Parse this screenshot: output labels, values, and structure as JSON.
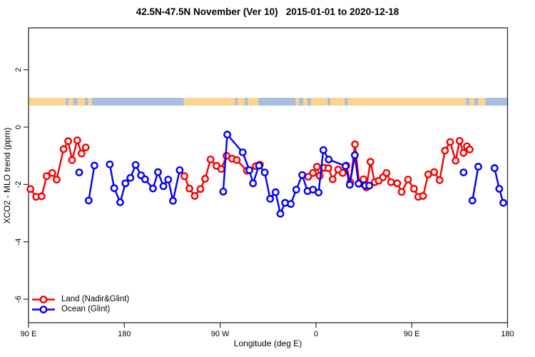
{
  "title": "42.5N-47.5N November (Ver 10)   2015-01-01 to 2020-12-18",
  "axes": {
    "x": {
      "label": "Longitude (deg E)",
      "range": [
        90,
        540
      ],
      "ticks": [
        {
          "value": 90,
          "label": "90 E"
        },
        {
          "value": 180,
          "label": "180"
        },
        {
          "value": 270,
          "label": "90 W"
        },
        {
          "value": 360,
          "label": "0"
        },
        {
          "value": 450,
          "label": "90 E"
        },
        {
          "value": 540,
          "label": "180"
        }
      ]
    },
    "y": {
      "label": "XCO2 - MLO trend (ppm)",
      "range": [
        -6.82,
        3.46
      ],
      "ticks": [
        {
          "value": 2,
          "label": "2"
        },
        {
          "value": 0,
          "label": "0"
        },
        {
          "value": -2,
          "label": "-2"
        },
        {
          "value": -4,
          "label": "-4"
        },
        {
          "value": -6,
          "label": "-6"
        }
      ]
    }
  },
  "legend": [
    {
      "label": "Land (Nadir&Glint)",
      "color": "#f60000"
    },
    {
      "label": "Ocean (Glint)",
      "color": "#0000f6"
    }
  ],
  "colors": {
    "land_series": "#f60000",
    "ocean_series": "#0000f6",
    "map_land": "#FAD58B",
    "map_ocean": "#A7BEDC",
    "axis": "#2a2a2a"
  },
  "map_strip": {
    "y_from": 0.75,
    "y_to": 1.02,
    "segments": [
      {
        "from": 90,
        "to": 125,
        "type": "land"
      },
      {
        "from": 125,
        "to": 127.5,
        "type": "ocean"
      },
      {
        "from": 127.5,
        "to": 132,
        "type": "land"
      },
      {
        "from": 132,
        "to": 136,
        "type": "ocean"
      },
      {
        "from": 136,
        "to": 143,
        "type": "land"
      },
      {
        "from": 143,
        "to": 146,
        "type": "ocean"
      },
      {
        "from": 146,
        "to": 149.5,
        "type": "land"
      },
      {
        "from": 149.5,
        "to": 236,
        "type": "ocean"
      },
      {
        "from": 236,
        "to": 284,
        "type": "land"
      },
      {
        "from": 284,
        "to": 286.5,
        "type": "ocean"
      },
      {
        "from": 286.5,
        "to": 293,
        "type": "land"
      },
      {
        "from": 293,
        "to": 296,
        "type": "ocean"
      },
      {
        "from": 296,
        "to": 306,
        "type": "land"
      },
      {
        "from": 306,
        "to": 341,
        "type": "ocean"
      },
      {
        "from": 341,
        "to": 344,
        "type": "land"
      },
      {
        "from": 344,
        "to": 348,
        "type": "ocean"
      },
      {
        "from": 348,
        "to": 352,
        "type": "land"
      },
      {
        "from": 352,
        "to": 355.5,
        "type": "ocean"
      },
      {
        "from": 355.5,
        "to": 371,
        "type": "land"
      },
      {
        "from": 371,
        "to": 373.5,
        "type": "ocean"
      },
      {
        "from": 373.5,
        "to": 387,
        "type": "land"
      },
      {
        "from": 387,
        "to": 390,
        "type": "ocean"
      },
      {
        "from": 390,
        "to": 501,
        "type": "land"
      },
      {
        "from": 501,
        "to": 504,
        "type": "ocean"
      },
      {
        "from": 504,
        "to": 509,
        "type": "land"
      },
      {
        "from": 509,
        "to": 512.5,
        "type": "ocean"
      },
      {
        "from": 512.5,
        "to": 519,
        "type": "land"
      },
      {
        "from": 519,
        "to": 540,
        "type": "ocean"
      }
    ]
  },
  "chart_data": {
    "type": "line",
    "title": "42.5N-47.5N November (Ver 10)   2015-01-01 to 2020-12-18",
    "xlabel": "Longitude (deg E)",
    "ylabel": "XCO2 - MLO trend (ppm)",
    "x_note": "longitude in deg E, continuous from 90E eastward through 180, 90W, 0, 90E to 180 (90..540)",
    "xlim": [
      90,
      540
    ],
    "ylim": [
      -6.82,
      3.46
    ],
    "grid": false,
    "legend_position": "bottom-left",
    "marker": "open-circle",
    "series": [
      {
        "name": "Land (Nadir&Glint)",
        "color": "#f60000",
        "segments": [
          [
            [
              91.8,
              -2.16
            ],
            [
              97.2,
              -2.43
            ],
            [
              102.3,
              -2.41
            ],
            [
              107.0,
              -1.71
            ],
            [
              112.3,
              -1.6
            ],
            [
              116.4,
              -1.83
            ],
            [
              122.9,
              -0.77
            ],
            [
              127.3,
              -0.49
            ],
            [
              130.9,
              -1.15
            ],
            [
              135.8,
              -0.46
            ],
            [
              139.8,
              -0.92
            ],
            [
              143.7,
              -0.71
            ]
          ],
          [
            [
              236.4,
              -1.71
            ],
            [
              241.1,
              -2.14
            ],
            [
              246.1,
              -2.4
            ],
            [
              251.5,
              -2.16
            ],
            [
              255.9,
              -1.8
            ],
            [
              261.0,
              -1.13
            ],
            [
              266.6,
              -1.35
            ],
            [
              271.1,
              -1.46
            ],
            [
              276.0,
              -1.0
            ],
            [
              281.2,
              -1.1
            ],
            [
              285.6,
              -1.15
            ],
            [
              295.2,
              -1.52
            ],
            [
              303.6,
              -1.36
            ],
            [
              307.4,
              -1.31
            ]
          ],
          [
            [
              352.8,
              -1.73
            ],
            [
              357.2,
              -1.6
            ],
            [
              361.0,
              -1.38
            ],
            [
              363.5,
              -1.7
            ],
            [
              367.7,
              -1.42
            ],
            [
              371.7,
              -1.43
            ],
            [
              375.7,
              -1.82
            ],
            [
              380.9,
              -1.48
            ],
            [
              385.1,
              -1.6
            ],
            [
              388.5,
              -1.34
            ],
            [
              392.3,
              -1.92
            ],
            [
              396.7,
              -0.6
            ],
            [
              400.7,
              -1.97
            ],
            [
              404.7,
              -1.82
            ],
            [
              407.4,
              -2.1
            ],
            [
              411.2,
              -1.21
            ],
            [
              415.2,
              -1.92
            ],
            [
              419.0,
              -1.87
            ],
            [
              423.0,
              -1.75
            ],
            [
              426.3,
              -1.6
            ],
            [
              430.5,
              -1.92
            ],
            [
              436.4,
              -1.96
            ],
            [
              440.5,
              -2.26
            ],
            [
              446.5,
              -1.83
            ],
            [
              452.1,
              -2.15
            ],
            [
              456.1,
              -2.43
            ],
            [
              460.6,
              -2.4
            ],
            [
              465.5,
              -1.65
            ],
            [
              471.1,
              -1.57
            ],
            [
              476.2,
              -1.85
            ],
            [
              481.2,
              -0.82
            ],
            [
              486.1,
              -0.52
            ],
            [
              491.2,
              -1.17
            ],
            [
              495.0,
              -0.48
            ],
            [
              498.6,
              -0.9
            ],
            [
              501.8,
              -0.67
            ],
            [
              504.5,
              -0.78
            ]
          ]
        ]
      },
      {
        "name": "Ocean (Glint)",
        "color": "#0000f6",
        "segments": [
          [
            [
              137.6,
              -1.58
            ]
          ],
          [
            [
              146.5,
              -2.56
            ],
            [
              151.9,
              -1.34
            ]
          ],
          [
            [
              166.3,
              -1.3
            ],
            [
              170.5,
              -2.13
            ],
            [
              176.1,
              -2.62
            ],
            [
              181.0,
              -1.96
            ],
            [
              185.7,
              -1.77
            ],
            [
              190.6,
              -1.32
            ],
            [
              195.7,
              -1.68
            ],
            [
              199.5,
              -1.82
            ],
            [
              206.9,
              -2.14
            ],
            [
              211.6,
              -1.57
            ],
            [
              216.7,
              -2.06
            ],
            [
              221.2,
              -1.83
            ],
            [
              225.7,
              -2.57
            ],
            [
              232.0,
              -1.5
            ]
          ],
          [
            [
              272.9,
              -2.25
            ],
            [
              276.7,
              -0.26
            ],
            [
              291.2,
              -0.88
            ],
            [
              297.5,
              -1.5
            ],
            [
              300.9,
              -1.96
            ],
            [
              306.5,
              -1.34
            ],
            [
              311.9,
              -1.58
            ],
            [
              317.0,
              -2.5
            ],
            [
              322.1,
              -2.27
            ],
            [
              326.6,
              -3.02
            ],
            [
              331.0,
              -2.64
            ],
            [
              336.4,
              -2.68
            ],
            [
              341.5,
              -2.18
            ],
            [
              347.1,
              -1.67
            ],
            [
              352.1,
              -2.23
            ],
            [
              357.2,
              -2.18
            ],
            [
              362.5,
              -2.28
            ],
            [
              367.0,
              -0.8
            ],
            [
              372.0,
              -1.13
            ],
            [
              387.8,
              -1.36
            ],
            [
              391.8,
              -2.01
            ],
            [
              396.5,
              -0.98
            ],
            [
              400.0,
              -1.97
            ],
            [
              406.3,
              -2.04
            ],
            [
              410.1,
              -2.04
            ]
          ],
          [
            [
              498.7,
              -1.58
            ]
          ],
          [
            [
              507.0,
              -2.56
            ],
            [
              512.5,
              -1.38
            ]
          ],
          [
            [
              527.8,
              -1.43
            ],
            [
              532.2,
              -2.15
            ],
            [
              536.0,
              -2.64
            ]
          ]
        ]
      }
    ]
  }
}
